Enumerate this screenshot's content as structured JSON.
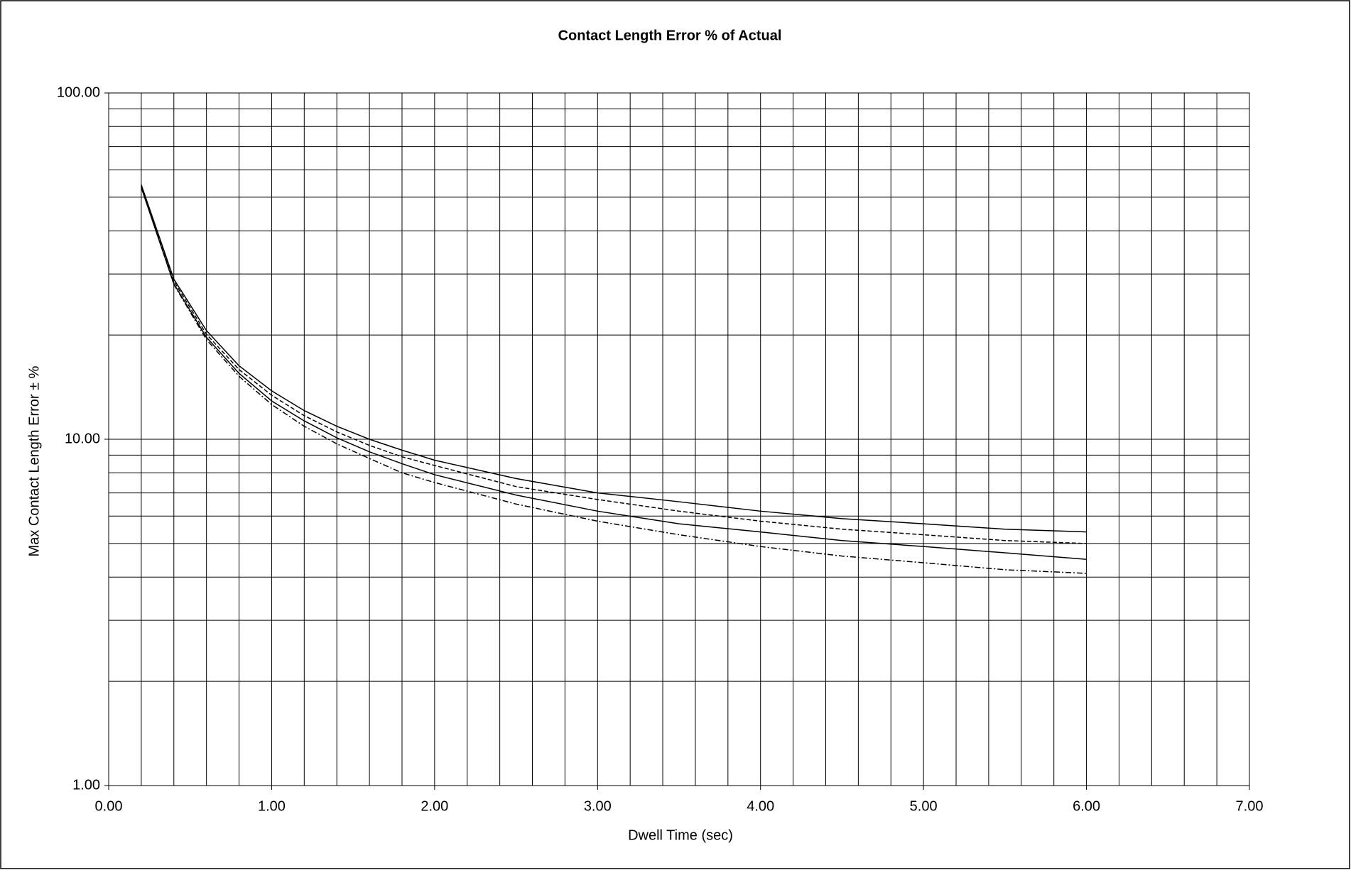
{
  "chart_data": {
    "type": "line",
    "title": "Contact Length Error % of Actual",
    "x_label": "Dwell Time (sec)",
    "y_label": "Max Contact Length Error ± %",
    "x": [
      0.2,
      0.4,
      0.6,
      0.8,
      1.0,
      1.2,
      1.4,
      1.6,
      1.8,
      2.0,
      2.5,
      3.0,
      3.5,
      4.0,
      4.5,
      5.0,
      5.5,
      6.0
    ],
    "series": [
      {
        "color": "#000000",
        "dash": "none",
        "values": [
          54.3,
          29.0,
          20.6,
          16.3,
          13.8,
          12.1,
          10.9,
          10.0,
          9.3,
          8.7,
          7.7,
          7.0,
          6.6,
          6.2,
          5.9,
          5.7,
          5.5,
          5.4
        ]
      },
      {
        "color": "#000000",
        "dash": "6,3",
        "values": [
          53.8,
          28.6,
          20.1,
          15.9,
          13.4,
          11.7,
          10.5,
          9.6,
          8.9,
          8.4,
          7.3,
          6.7,
          6.2,
          5.8,
          5.5,
          5.3,
          5.1,
          5.0
        ]
      },
      {
        "color": "#000000",
        "dash": "none",
        "values": [
          53.3,
          28.1,
          19.7,
          15.5,
          12.9,
          11.3,
          10.1,
          9.2,
          8.5,
          7.9,
          6.9,
          6.2,
          5.7,
          5.4,
          5.1,
          4.9,
          4.7,
          4.5
        ]
      },
      {
        "color": "#000000",
        "dash": "8,3,2,3",
        "values": [
          53.6,
          28.0,
          19.4,
          15.2,
          12.6,
          10.9,
          9.7,
          8.8,
          8.0,
          7.5,
          6.5,
          5.8,
          5.3,
          4.9,
          4.6,
          4.4,
          4.2,
          4.1
        ]
      }
    ],
    "xlim": [
      0,
      7
    ],
    "xticks": [
      {
        "value": 0,
        "label": "0.00"
      },
      {
        "value": 1,
        "label": "1.00"
      },
      {
        "value": 2,
        "label": "2.00"
      },
      {
        "value": 3,
        "label": "3.00"
      },
      {
        "value": 4,
        "label": "4.00"
      },
      {
        "value": 5,
        "label": "5.00"
      },
      {
        "value": 6,
        "label": "6.00"
      },
      {
        "value": 7,
        "label": "7.00"
      }
    ],
    "x_minor_grid": [
      0.2,
      0.4,
      0.6,
      0.8,
      1.2,
      1.4,
      1.6,
      1.8,
      2.2,
      2.4,
      2.6,
      2.8,
      3.2,
      3.4,
      3.6,
      3.8,
      4.2,
      4.4,
      4.6,
      4.8,
      5.2,
      5.4,
      5.6,
      5.8,
      6.2,
      6.4,
      6.6,
      6.8
    ],
    "ylim": [
      1,
      100
    ],
    "y_scale": "log",
    "yticks": [
      {
        "value": 1,
        "label": "1.00"
      },
      {
        "value": 10,
        "label": "10.00"
      },
      {
        "value": 100,
        "label": "100.00"
      }
    ],
    "y_minor_grid": [
      2,
      3,
      4,
      5,
      6,
      7,
      8,
      9,
      20,
      30,
      40,
      50,
      60,
      70,
      80,
      90
    ],
    "grid": true
  }
}
